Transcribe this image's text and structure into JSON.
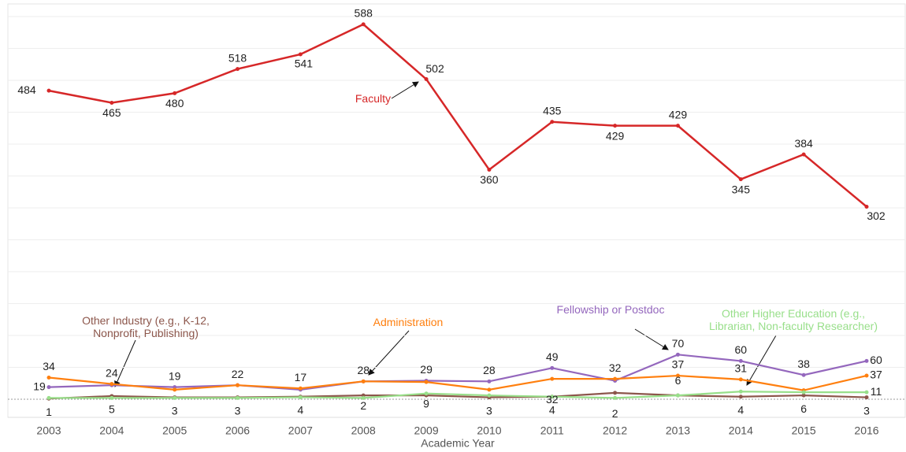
{
  "chart_data": {
    "type": "line",
    "x_label": "Academic Year",
    "categories": [
      "2003",
      "2004",
      "2005",
      "2006",
      "2007",
      "2008",
      "2009",
      "2010",
      "2011",
      "2012",
      "2013",
      "2014",
      "2015",
      "2016"
    ],
    "ylim": [
      0,
      620
    ],
    "grid": true,
    "series": [
      {
        "name": "Faculty",
        "color": "#d62728",
        "values": [
          484,
          465,
          480,
          518,
          541,
          588,
          502,
          360,
          435,
          429,
          429,
          345,
          384,
          302
        ],
        "value_labels": [
          "484",
          "465",
          "480",
          "518",
          "541",
          "588",
          "502",
          "360",
          "435",
          "429",
          "429",
          "345",
          "384",
          "302"
        ]
      },
      {
        "name": "Fellowship or Postdoc",
        "color": "#9467bd",
        "values": [
          19,
          22,
          19,
          22,
          15,
          28,
          29,
          28,
          49,
          29,
          70,
          60,
          38,
          60
        ],
        "value_labels": [
          "19",
          null,
          "19",
          null,
          null,
          "28",
          "29",
          "28",
          "49",
          null,
          "70",
          "60",
          "38",
          "60"
        ]
      },
      {
        "name": "Administration",
        "color": "#ff7f0e",
        "values": [
          34,
          24,
          15,
          22,
          17,
          28,
          27,
          15,
          32,
          32,
          37,
          31,
          14,
          37
        ],
        "value_labels": [
          "34",
          "24",
          null,
          "22",
          "17",
          null,
          null,
          null,
          "32",
          "32",
          "37",
          "31",
          null,
          "37"
        ]
      },
      {
        "name": "Other Industry (e.g., K-12, Nonprofit, Publishing)",
        "color": "#8c564b",
        "values": [
          1,
          5,
          3,
          3,
          4,
          6,
          6,
          3,
          4,
          10,
          6,
          4,
          6,
          3
        ],
        "value_labels": [
          "1",
          "5",
          "3",
          "3",
          "4",
          null,
          null,
          "3",
          "4",
          null,
          null,
          "4",
          "6",
          "3"
        ]
      },
      {
        "name": "Other Higher Education (e.g., Librarian, Non-faculty Researcher)",
        "color": "#98df8a",
        "values": [
          2,
          2,
          2,
          2,
          3,
          2,
          9,
          6,
          4,
          2,
          6,
          12,
          11,
          11
        ],
        "value_labels": [
          null,
          null,
          null,
          null,
          null,
          "2",
          "9",
          null,
          null,
          "2",
          "6",
          null,
          null,
          "11"
        ]
      }
    ]
  }
}
